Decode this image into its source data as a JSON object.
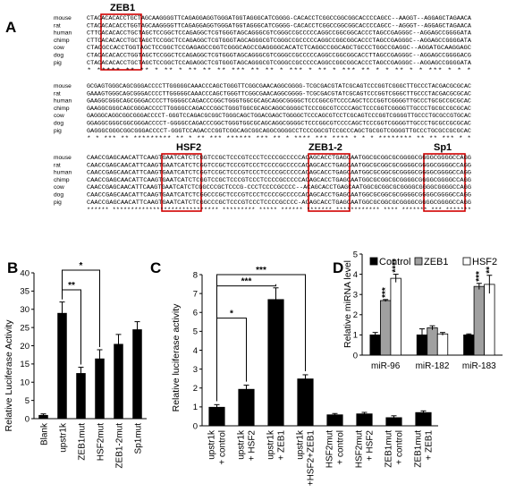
{
  "panels": [
    "A",
    "B",
    "C",
    "D"
  ],
  "alignment": {
    "species": [
      "mouse",
      "rat",
      "human",
      "chimp",
      "cow",
      "dog",
      "pig"
    ],
    "boxes": [
      "ZEB1",
      "HSF2",
      "ZEB1-2",
      "Sp1"
    ],
    "block1": [
      "CTACACACACCTGCTAGCAAGGGGTTCAGAGGAGGTGGGATGGTAGGGCATCGGGG-CACACCTCGGCCGGCGGCACCCCAGCC--AAGGT--AGGAGCTAGAACA",
      "CTACACACACCTGGTAGCAAGGGGTTCAGAGGAGGTGGGATGGTAGGGCATCGGGG-CACACCTCGGCCGGCGGCACCCCAGCC--AGGGT--AGGAGCTAGAACA",
      "CTTCACACACCTGCTAGCTCCGGCTCCAGAGGCTCGTGGGTAGCAGGGCGTCGGGCCGCCCCCAGGCCGGCGGCACCCTAGCCGAGGGC--AGGAGCCGGGGATA",
      "CTTCACACACCTGCTAGCTCCGGCTCCAGAGGCTCGTGGGTAGCAGGGCGTCGGGCCGCCCCCAGGCCGGCGGCACCCTAGCCGAGGGC--AGGAGCCGGGGATA",
      "CTACGCCACCTGGTAGCTCCGGCTCCGAGAGCCGGTCGGGCAGCCGAGGGGCACATCTCAGGCCGGCAGCTGCCCTGGCCGAGGC--AGGATGCAAGGAGC",
      "CTACACACACCTGGTAGCTCCGGCTCCAGAGGCTCGTGGGTAGCAGGGCGTCGGGCCGCCCCCAGGCCGGCGGCACCTTAGCCGAGGGC--AGGAGCCGGGGACG",
      "CTACACACACCTGCTAGCTCCGGCTCCAGAGGCTCGTGGGTAGCAGGGCGTCGGGCCGCCCCCAGGCCGGCGGCACCCTAGCCGAGGGC--AGGAGCCGGGGATA"
    ],
    "cons1": " *  *****  **  **   *  **  *  **   **  ** *** ** ** * ***   *  **   * ***  **  *  *   **  *  *   *** *  * *",
    "block2": [
      "GCGAGTGGGCAGCGGGACCCCTTGGGGGCAAACCCAGCTGGGTTCGGCGAACAGGCGGGG-TCGCGACGTATCGCAGTCCCGGTCGGGCTTGCCCTACGACGCGCAC",
      "GAAAGTGGGCAGCGGGACCCCTTGGGGGCAAACCCAGCTGGGTTCGGCGAACAGGCGGGG-TCGCGACGTATCGCAGTCCCGGTCGGGCTTGCCCTACGACGCGCAC",
      "GAAGGCGGGCAGCGGGACCCCTTGGGGCCAGACCCGGCTGGGTGGCGCAGCAGGCGGGGCTCCCGGCGTCCCCAGCTCCCGGTCGGGGTTGCCCTGCGCCGCGCAC",
      "GAAGGCGGGCAGCGGGACCCCTTGGGGCCAGACCCGGCTGGGTGGCGCAGCAGGCGGGGCTCCCGGCGTCCCCAGCTCCCGGTCGGGGTTGCCCTGCGCCGCGCAC",
      "GAGGGCAGGCGGCGGGACCCCT-GGGTCCAGACGCGGCTGGGCAGCTGGACGAGCTGGGGCTCCCAGCGTCCTCGCAGTCCCGGTCGGGGTTGCCCTGCGCCGTGCAC",
      "GGAGGCGGGCGGCGGGACCCCT-GGGGCCAGACCCGGCTGGGTGGCGCAGCAGGCGGGGCTCCCGGCGTCCCCAGCTCCCGGTCGGGGTTGCCCTGCGCCGCGCAC",
      "GAGGGCGGGCGGCGGGACCCCT-GGGTCCAGACCCGGTCGGCAGCGGCAGGCGGGGCCTCCCGGCGTCCGCCCAGCTGCGGTCGGGGTTGCCCTGCGCCGCGCAC"
    ],
    "cons2": " *   * *** ** ********* **  * ** *** ******    ***  ** * ****  ***  **** *  *  *    ******** ** ** ***  * *",
    "block3": [
      "CAACCGAGCAACATTCAAGTGAATCATCTCGGTCCGCTCCCGTCCCTCCCCGCCCCCACAGCACCTGAGCAATGGCGCGGCGCGGGGCGGGGCGGGGCCAGG",
      "CAACCGAGCAACATTCAAGTGAATCATCTCGGTCCGCTCCCGTCCCTCCCCGCCCCCACAGCACCTGAGCAATGGCGCGGCGCGGGGCGGGGCGGGGCCAGG",
      "CAACCGAGCAACATTCAAGTGAATCATCTCGGTCCGCTCCCGTCCCTCCCCGCCCCCACAGCACCTGAGCAATGGCGCGGCGCGGGGCGGGGCGGGGCCAGG",
      "CAACCGAGCAACATTCAAGTGAATCATCTCGGTCCGCTCCCGTCCCTCCCCGCCCCCACAGCACCTGAGCAATGGCGCGGCGCGGGGCGGGGCGGGGCCAGG",
      "CAACCGAGCAACATTCAAGTGAATCATCTCGGCCCGCTCCCG-CCCTCCCCGCCCC--ACAGCACCTGAGCAATGGCGCGGCGCGGGGCGGGGCGGGGCCAGG",
      "CAACCGAGCAACATTCAAGTGAATCATCTCGGCCCGCTCCCGTCCCTCCCCGCCCCCACAGCACCTGAGCAATGGCGCGGCGCGGGGCGGGGCGGGGCCAGG",
      "CAACCGAGCAACATTCAAGTGAATCATCTCGGCCCGCTCCCGTCCCTCCCCGCCCC-ACAGCACCTGAGCAATGGCGCGGCGCGGGGCGGGGCGGGGCCAGG"
    ],
    "cons3": "****** ***************************** ********* ***** ****** ******* ************ **** ******* *** *******"
  },
  "chart_data": [
    {
      "panel": "B",
      "type": "bar",
      "ylabel": "Relative Luciferase Activity",
      "ylim": [
        0,
        40
      ],
      "yticks": [
        0,
        5,
        10,
        15,
        20,
        25,
        30,
        35,
        40
      ],
      "categories": [
        "Blank",
        "upstr1k",
        "ZEB1mut",
        "HSF2mut",
        "ZEB1-2mut",
        "Sp1mut"
      ],
      "values": [
        1.0,
        29.0,
        12.5,
        16.5,
        20.5,
        24.5
      ],
      "errors": [
        0.3,
        3.0,
        1.6,
        2.4,
        2.6,
        2.1
      ],
      "color": "#000000",
      "significance": [
        {
          "from": "upstr1k",
          "to": "ZEB1mut",
          "label": "**"
        },
        {
          "from": "upstr1k",
          "to": "HSF2mut",
          "label": "*"
        }
      ]
    },
    {
      "panel": "C",
      "type": "bar",
      "ylabel": "Relative luciferase activity",
      "ylim": [
        0,
        8
      ],
      "yticks": [
        0,
        1,
        2,
        3,
        4,
        5,
        6,
        7,
        8
      ],
      "categories": [
        "upstr1k + control",
        "upstr1k + HSF2",
        "upstr1k + ZEB1",
        "upstr1k +HSF2+ZEB1",
        "HSF2mut + control",
        "HSF2mut + HSF2",
        "ZEB1mut + control",
        "ZEB1mut + ZEB1"
      ],
      "category_lines": [
        [
          "upstr1k",
          "+ control"
        ],
        [
          "upstr1k",
          "+ HSF2"
        ],
        [
          "upstr1k",
          "+ ZEB1"
        ],
        [
          "upstr1k",
          "+HSF2+ZEB1"
        ],
        [
          "HSF2mut",
          "+ control"
        ],
        [
          "HSF2mut",
          "+ HSF2"
        ],
        [
          "ZEB1mut",
          "+ control"
        ],
        [
          "ZEB1mut",
          "+ ZEB1"
        ]
      ],
      "values": [
        1.0,
        1.95,
        6.7,
        2.5,
        0.6,
        0.65,
        0.45,
        0.72
      ],
      "errors": [
        0.12,
        0.2,
        0.6,
        0.2,
        0.05,
        0.06,
        0.08,
        0.07
      ],
      "color": "#000000",
      "significance": [
        {
          "from": "upstr1k + control",
          "to": "upstr1k + HSF2",
          "label": "*"
        },
        {
          "from": "upstr1k + control",
          "to": "upstr1k + ZEB1",
          "label": "***"
        },
        {
          "from": "upstr1k + control",
          "to": "upstr1k +HSF2+ZEB1",
          "label": "***"
        }
      ]
    },
    {
      "panel": "D",
      "type": "bar",
      "ylabel": "Relative miRNA level",
      "ylim": [
        0,
        5
      ],
      "yticks": [
        0,
        1,
        2,
        3,
        4,
        5
      ],
      "categories": [
        "miR-96",
        "miR-182",
        "miR-183"
      ],
      "legend": "top",
      "series": [
        {
          "name": "Control",
          "color": "#000000",
          "values": [
            1.0,
            1.0,
            1.0
          ],
          "errors": [
            0.12,
            0.3,
            0.05
          ],
          "stars": [
            "",
            "",
            ""
          ]
        },
        {
          "name": "ZEB1",
          "color": "#a0a0a0",
          "values": [
            2.7,
            1.35,
            3.4
          ],
          "errors": [
            0.05,
            0.1,
            0.15
          ],
          "stars": [
            "***",
            "",
            "***"
          ]
        },
        {
          "name": "HSF2",
          "color": "#ffffff",
          "values": [
            3.8,
            1.05,
            3.5
          ],
          "errors": [
            0.2,
            0.07,
            0.45
          ],
          "stars": [
            "****",
            "",
            "**"
          ]
        }
      ]
    }
  ]
}
